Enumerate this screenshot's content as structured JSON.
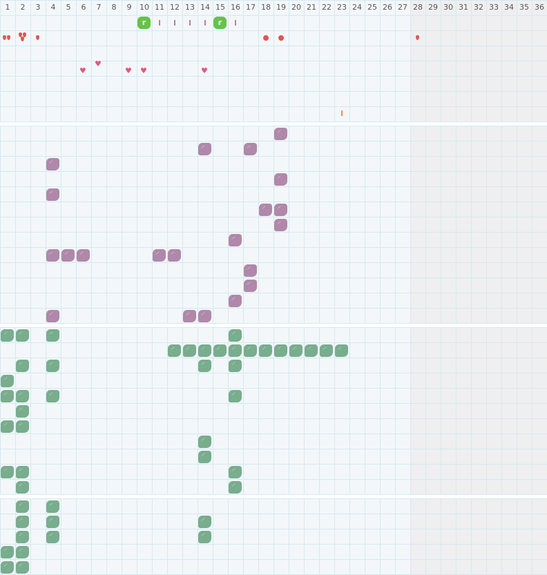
{
  "header": {
    "days": [
      "1",
      "2",
      "3",
      "4",
      "5",
      "6",
      "7",
      "8",
      "9",
      "10",
      "11",
      "12",
      "13",
      "14",
      "15",
      "16",
      "17",
      "18",
      "19",
      "20",
      "21",
      "22",
      "23",
      "24",
      "25",
      "26",
      "27",
      "28",
      "29",
      "30",
      "31",
      "32",
      "33",
      "34",
      "35",
      "36"
    ],
    "shaded_from_day": 28
  },
  "colors": {
    "purple": "#b088aa",
    "green": "#78ad8d",
    "badge": "#66c24a",
    "red": "#e05555",
    "heart": "#e05a7e",
    "tick": "#b3829f",
    "orange": "#ef8a5a"
  },
  "top_section": {
    "badges": [
      {
        "day": 10,
        "label": "r"
      },
      {
        "day": 15,
        "label": "r"
      }
    ],
    "ticks": [
      11,
      12,
      13,
      14,
      16
    ],
    "drops": [
      {
        "day": 1,
        "count": 2
      },
      {
        "day": 2,
        "count": 3
      },
      {
        "day": 3,
        "count": 1
      },
      {
        "day": 28,
        "count": 1
      }
    ],
    "dots": [
      18,
      19
    ],
    "hearts": [
      {
        "day": 6,
        "raised": false
      },
      {
        "day": 7,
        "raised": true
      },
      {
        "day": 9,
        "raised": false
      },
      {
        "day": 10,
        "raised": false
      },
      {
        "day": 14,
        "raised": false
      }
    ],
    "orange_ticks": [
      23
    ]
  },
  "sections": [
    {
      "color": "purple",
      "rows": [
        [
          19
        ],
        [
          14,
          17
        ],
        [
          4
        ],
        [
          19
        ],
        [
          4
        ],
        [
          18,
          19
        ],
        [
          19
        ],
        [
          16
        ],
        [
          4,
          5,
          6,
          11,
          12
        ],
        [
          17
        ],
        [
          17
        ],
        [
          16
        ],
        [
          4,
          13,
          14
        ]
      ]
    },
    {
      "color": "green",
      "rows": [
        [
          1,
          2,
          4,
          16
        ],
        [
          12,
          13,
          14,
          15,
          16,
          17,
          18,
          19,
          20,
          21,
          22,
          23
        ],
        [
          2,
          4,
          14,
          16
        ],
        [
          1
        ],
        [
          1,
          2,
          4,
          16
        ],
        [
          2
        ],
        [
          1,
          2
        ],
        [
          14
        ],
        [
          14
        ],
        [
          1,
          2,
          16
        ],
        [
          2,
          16
        ]
      ]
    },
    {
      "color": "green",
      "rows": [
        [
          2,
          4
        ],
        [
          2,
          4,
          14
        ],
        [
          2,
          4,
          14
        ],
        [
          1,
          2
        ],
        [
          1,
          2
        ]
      ]
    }
  ]
}
